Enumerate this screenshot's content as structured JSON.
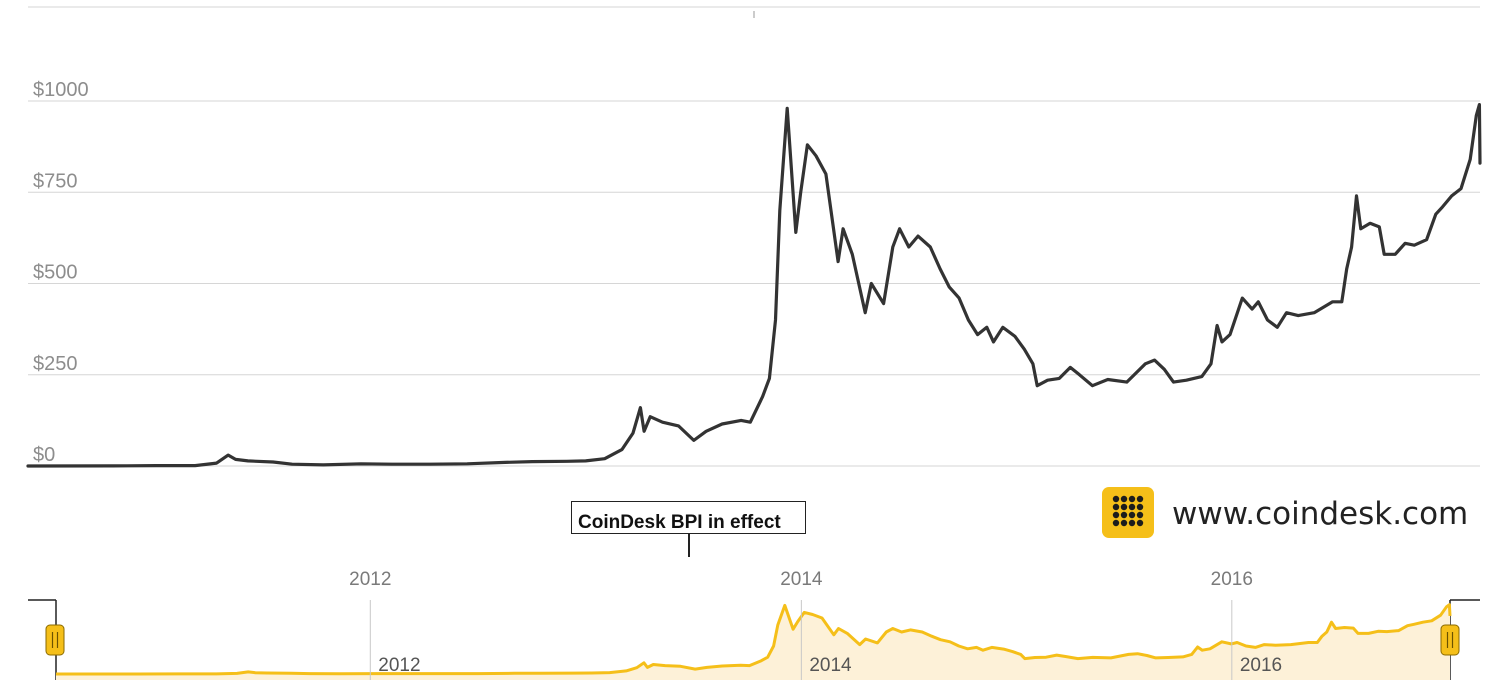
{
  "chart_data": {
    "type": "line",
    "y_ticks": [
      "$0",
      "$250",
      "$500",
      "$750",
      "$1000"
    ],
    "ylim": [
      0,
      1000
    ],
    "xlim": [
      "2010-07-17",
      "2017-01-05"
    ],
    "grid": true,
    "annotation": "CoinDesk BPI in effect",
    "series": [
      {
        "color": "#333333",
        "points": [
          [
            "2010-07-17",
            0.05
          ],
          [
            "2010-12-01",
            0.25
          ],
          [
            "2011-02-10",
            1
          ],
          [
            "2011-04-15",
            1
          ],
          [
            "2011-05-20",
            8
          ],
          [
            "2011-06-08",
            30
          ],
          [
            "2011-06-20",
            18
          ],
          [
            "2011-07-10",
            14
          ],
          [
            "2011-08-20",
            11
          ],
          [
            "2011-09-20",
            5
          ],
          [
            "2011-11-10",
            3
          ],
          [
            "2012-01-10",
            6
          ],
          [
            "2012-03-01",
            5
          ],
          [
            "2012-05-01",
            5
          ],
          [
            "2012-07-01",
            6
          ],
          [
            "2012-09-01",
            10
          ],
          [
            "2012-10-15",
            12
          ],
          [
            "2012-12-10",
            13
          ],
          [
            "2013-01-10",
            14
          ],
          [
            "2013-02-10",
            20
          ],
          [
            "2013-03-10",
            45
          ],
          [
            "2013-03-28",
            90
          ],
          [
            "2013-04-09",
            160
          ],
          [
            "2013-04-15",
            95
          ],
          [
            "2013-04-25",
            135
          ],
          [
            "2013-05-15",
            120
          ],
          [
            "2013-06-10",
            110
          ],
          [
            "2013-07-05",
            70
          ],
          [
            "2013-07-25",
            95
          ],
          [
            "2013-08-20",
            115
          ],
          [
            "2013-09-20",
            125
          ],
          [
            "2013-10-05",
            120
          ],
          [
            "2013-10-25",
            190
          ],
          [
            "2013-11-05",
            240
          ],
          [
            "2013-11-15",
            400
          ],
          [
            "2013-11-22",
            700
          ],
          [
            "2013-12-04",
            980
          ],
          [
            "2013-12-18",
            640
          ],
          [
            "2013-12-26",
            750
          ],
          [
            "2014-01-06",
            880
          ],
          [
            "2014-01-20",
            850
          ],
          [
            "2014-02-05",
            800
          ],
          [
            "2014-02-25",
            560
          ],
          [
            "2014-03-05",
            650
          ],
          [
            "2014-03-20",
            580
          ],
          [
            "2014-04-10",
            420
          ],
          [
            "2014-04-20",
            500
          ],
          [
            "2014-05-10",
            445
          ],
          [
            "2014-05-25",
            600
          ],
          [
            "2014-06-05",
            650
          ],
          [
            "2014-06-20",
            600
          ],
          [
            "2014-07-05",
            630
          ],
          [
            "2014-07-25",
            600
          ],
          [
            "2014-08-10",
            540
          ],
          [
            "2014-08-25",
            490
          ],
          [
            "2014-09-10",
            460
          ],
          [
            "2014-09-25",
            400
          ],
          [
            "2014-10-10",
            360
          ],
          [
            "2014-10-25",
            380
          ],
          [
            "2014-11-05",
            340
          ],
          [
            "2014-11-20",
            380
          ],
          [
            "2014-12-10",
            355
          ],
          [
            "2014-12-25",
            320
          ],
          [
            "2015-01-08",
            280
          ],
          [
            "2015-01-15",
            220
          ],
          [
            "2015-02-01",
            235
          ],
          [
            "2015-02-20",
            240
          ],
          [
            "2015-03-10",
            270
          ],
          [
            "2015-03-25",
            250
          ],
          [
            "2015-04-15",
            220
          ],
          [
            "2015-05-10",
            237
          ],
          [
            "2015-06-10",
            230
          ],
          [
            "2015-07-10",
            280
          ],
          [
            "2015-07-25",
            290
          ],
          [
            "2015-08-10",
            265
          ],
          [
            "2015-08-25",
            230
          ],
          [
            "2015-09-15",
            235
          ],
          [
            "2015-10-10",
            245
          ],
          [
            "2015-10-25",
            280
          ],
          [
            "2015-11-04",
            385
          ],
          [
            "2015-11-12",
            340
          ],
          [
            "2015-11-25",
            360
          ],
          [
            "2015-12-15",
            460
          ],
          [
            "2015-12-31",
            430
          ],
          [
            "2016-01-10",
            450
          ],
          [
            "2016-01-25",
            400
          ],
          [
            "2016-02-10",
            380
          ],
          [
            "2016-02-25",
            420
          ],
          [
            "2016-03-15",
            412
          ],
          [
            "2016-04-10",
            420
          ],
          [
            "2016-05-10",
            450
          ],
          [
            "2016-05-25",
            450
          ],
          [
            "2016-06-02",
            540
          ],
          [
            "2016-06-10",
            600
          ],
          [
            "2016-06-18",
            740
          ],
          [
            "2016-06-25",
            650
          ],
          [
            "2016-07-10",
            665
          ],
          [
            "2016-07-25",
            655
          ],
          [
            "2016-08-02",
            580
          ],
          [
            "2016-08-20",
            580
          ],
          [
            "2016-09-05",
            610
          ],
          [
            "2016-09-20",
            605
          ],
          [
            "2016-10-10",
            620
          ],
          [
            "2016-10-25",
            690
          ],
          [
            "2016-11-05",
            710
          ],
          [
            "2016-11-20",
            740
          ],
          [
            "2016-12-05",
            760
          ],
          [
            "2016-12-20",
            840
          ],
          [
            "2016-12-30",
            960
          ],
          [
            "2017-01-04",
            990
          ],
          [
            "2017-01-07",
            830
          ],
          [
            "2017-01-10",
            830
          ]
        ]
      }
    ],
    "navigator": {
      "color": "#f5bf19",
      "fill": "#fdf1d8",
      "x_ticks": [
        "2012",
        "2014",
        "2016"
      ]
    }
  },
  "brand": {
    "logo_icon": "coindesk-dots-icon",
    "logo_color": "#f5bf19",
    "url": "www.coindesk.com"
  }
}
